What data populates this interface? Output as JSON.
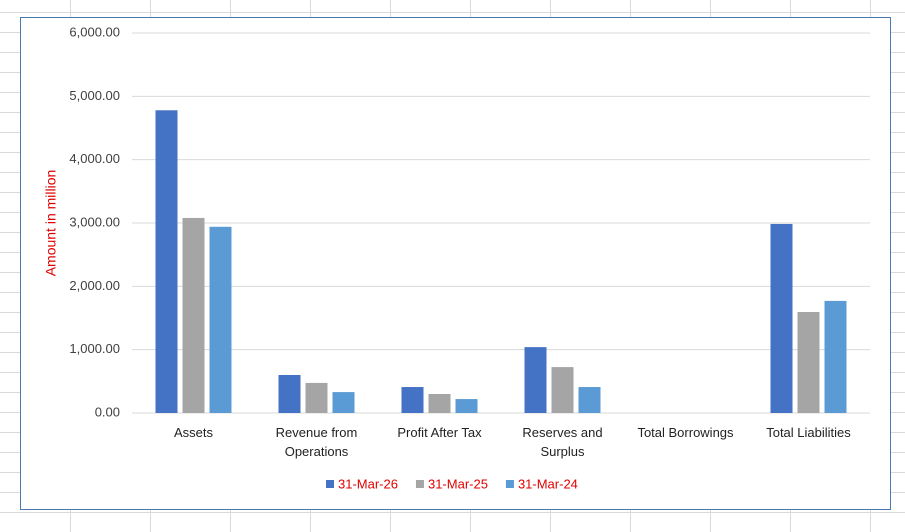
{
  "chart_data": {
    "type": "bar",
    "y_label": "Amount in million",
    "categories": [
      "Assets",
      "Revenue from Operations",
      "Profit After Tax",
      "Reserves and Surplus",
      "Total Borrowings",
      "Total Liabilities"
    ],
    "series": [
      {
        "name": "31-Mar-26",
        "color": "#4472c4",
        "values": [
          4780,
          600,
          410,
          1040,
          0,
          2985
        ]
      },
      {
        "name": "31-Mar-25",
        "color": "#a5a5a5",
        "values": [
          3080,
          475,
          300,
          725,
          0,
          1595
        ]
      },
      {
        "name": "31-Mar-24",
        "color": "#5b9bd5",
        "values": [
          2940,
          330,
          220,
          410,
          0,
          1770
        ]
      }
    ],
    "ylim": [
      0,
      6000
    ],
    "yticks": [
      {
        "value": 0,
        "label": "0.00"
      },
      {
        "value": 1000,
        "label": "1,000.00"
      },
      {
        "value": 2000,
        "label": "2,000.00"
      },
      {
        "value": 3000,
        "label": "3,000.00"
      },
      {
        "value": 4000,
        "label": "4,000.00"
      },
      {
        "value": 5000,
        "label": "5,000.00"
      },
      {
        "value": 6000,
        "label": "6,000.00"
      }
    ],
    "grid": true
  }
}
